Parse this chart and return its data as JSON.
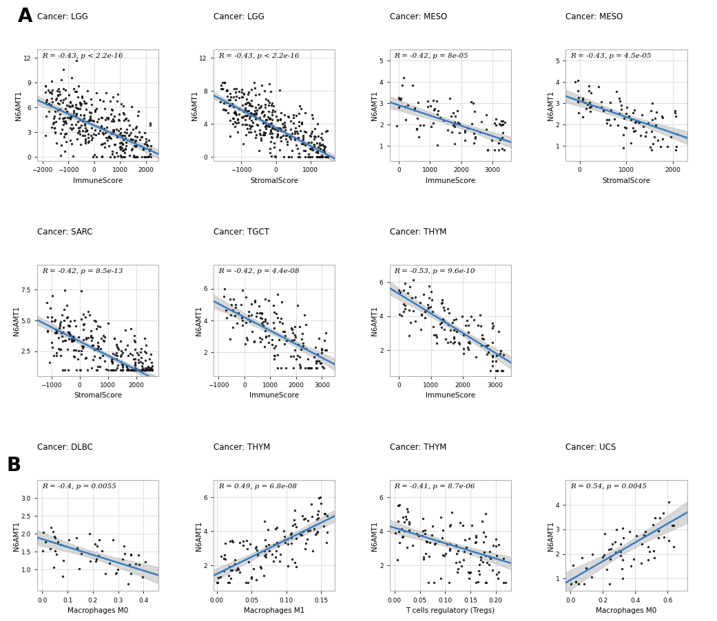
{
  "panels": [
    {
      "row": 0,
      "col": 0,
      "title": "Cancer: LGG",
      "xlabel": "ImmuneScore",
      "ylabel": "N6AMT1",
      "r_text": "R = -0.43, p < 2.2e-16",
      "xlim": [
        -2200,
        2500
      ],
      "ylim": [
        -0.5,
        13
      ],
      "xticks": [
        -2000,
        -1000,
        0,
        1000,
        2000
      ],
      "yticks": [
        0,
        3,
        6,
        9,
        12
      ],
      "slope": -0.0014,
      "intercept": 3.8,
      "n_points": 350,
      "xr": [
        -1900,
        2200
      ],
      "yr": [
        0,
        12
      ],
      "noise_y": 2.2,
      "section": "A",
      "has_right_density": true
    },
    {
      "row": 0,
      "col": 1,
      "title": "Cancer: LGG",
      "xlabel": "StromalScore",
      "ylabel": "N6AMT1",
      "r_text": "R = -0.43, p < 2.2e-16",
      "xlim": [
        -1800,
        1700
      ],
      "ylim": [
        -0.5,
        13
      ],
      "xticks": [
        -1000,
        0,
        1000
      ],
      "yticks": [
        0,
        4,
        8,
        12
      ],
      "slope": -0.0022,
      "intercept": 3.5,
      "n_points": 350,
      "xr": [
        -1600,
        1500
      ],
      "yr": [
        0,
        9
      ],
      "noise_y": 1.8,
      "section": "A",
      "has_right_density": true
    },
    {
      "row": 0,
      "col": 2,
      "title": "Cancer: MESO",
      "xlabel": "ImmuneScore",
      "ylabel": "N6AMT1",
      "r_text": "R = -0.42, p = 8e-05",
      "xlim": [
        -300,
        3600
      ],
      "ylim": [
        0.3,
        5.5
      ],
      "xticks": [
        0,
        1000,
        2000,
        3000
      ],
      "yticks": [
        1,
        2,
        3,
        4,
        5
      ],
      "slope": -0.00048,
      "intercept": 2.9,
      "n_points": 87,
      "xr": [
        -100,
        3400
      ],
      "yr": [
        0.8,
        5.0
      ],
      "noise_y": 0.6,
      "section": "A",
      "has_right_density": true
    },
    {
      "row": 0,
      "col": 3,
      "title": "Cancer: MESO",
      "xlabel": "StromalScore",
      "ylabel": "N6AMT1",
      "r_text": "R = -0.43, p = 4.5e-05",
      "xlim": [
        -300,
        2300
      ],
      "ylim": [
        0.3,
        5.5
      ],
      "xticks": [
        0,
        1000,
        2000
      ],
      "yticks": [
        1,
        2,
        3,
        4,
        5
      ],
      "slope": -0.00075,
      "intercept": 3.1,
      "n_points": 87,
      "xr": [
        -100,
        2100
      ],
      "yr": [
        0.8,
        5.0
      ],
      "noise_y": 0.6,
      "section": "A",
      "has_right_density": true
    },
    {
      "row": 1,
      "col": 0,
      "title": "Cancer: SARC",
      "xlabel": "StromalScore",
      "ylabel": "N6AMT1",
      "r_text": "R = -0.42, p = 8.5e-13",
      "xlim": [
        -1500,
        2800
      ],
      "ylim": [
        0.5,
        9.5
      ],
      "xticks": [
        -1000,
        0,
        1000,
        2000
      ],
      "yticks": [
        2.5,
        5.0,
        7.5
      ],
      "slope": -0.00115,
      "intercept": 3.3,
      "n_points": 260,
      "xr": [
        -1200,
        2600
      ],
      "yr": [
        1.0,
        9.0
      ],
      "noise_y": 1.3,
      "section": "A",
      "has_right_density": true
    },
    {
      "row": 1,
      "col": 1,
      "title": "Cancer: TGCT",
      "xlabel": "ImmuneScore",
      "ylabel": "N6AMT1",
      "r_text": "R = -0.42, p = 4.4e-08",
      "xlim": [
        -1200,
        3500
      ],
      "ylim": [
        0.5,
        7.5
      ],
      "xticks": [
        -1000,
        0,
        1000,
        2000,
        3000
      ],
      "yticks": [
        2,
        4,
        6
      ],
      "slope": -0.00085,
      "intercept": 4.2,
      "n_points": 150,
      "xr": [
        -800,
        3200
      ],
      "yr": [
        1.0,
        7.0
      ],
      "noise_y": 1.0,
      "section": "A",
      "has_right_density": true
    },
    {
      "row": 1,
      "col": 2,
      "title": "Cancer: THYM",
      "xlabel": "ImmuneScore",
      "ylabel": "N6AMT1",
      "r_text": "R = -0.53, p = 9.6e-10",
      "xlim": [
        -300,
        3500
      ],
      "ylim": [
        0.5,
        7.0
      ],
      "xticks": [
        0,
        1000,
        2000,
        3000
      ],
      "yticks": [
        2,
        4,
        6
      ],
      "slope": -0.00115,
      "intercept": 5.3,
      "n_points": 120,
      "xr": [
        -100,
        3300
      ],
      "yr": [
        0.8,
        6.5
      ],
      "noise_y": 0.9,
      "section": "A",
      "has_right_density": true
    },
    {
      "row": 2,
      "col": 0,
      "title": "Cancer: DLBC",
      "xlabel": "Macrophages M0",
      "ylabel": "N6AMT1",
      "r_text": "R = -0.4, p = 0.0055",
      "xlim": [
        -0.02,
        0.46
      ],
      "ylim": [
        0.4,
        3.5
      ],
      "xticks": [
        0.0,
        0.1,
        0.2,
        0.3,
        0.4
      ],
      "yticks": [
        1.0,
        1.5,
        2.0,
        2.5,
        3.0
      ],
      "slope": -2.2,
      "intercept": 1.85,
      "n_points": 48,
      "xr": [
        0.0,
        0.43
      ],
      "yr": [
        0.6,
        3.2
      ],
      "noise_y": 0.35,
      "section": "B",
      "has_right_density": true
    },
    {
      "row": 2,
      "col": 1,
      "title": "Cancer: THYM",
      "xlabel": "Macrophages M1",
      "ylabel": "N6AMT1",
      "r_text": "R = 0.49, p = 6.8e-08",
      "xlim": [
        -0.005,
        0.17
      ],
      "ylim": [
        0.5,
        7.0
      ],
      "xticks": [
        0.0,
        0.05,
        0.1,
        0.15
      ],
      "yticks": [
        2,
        4,
        6
      ],
      "slope": 20.0,
      "intercept": 1.5,
      "n_points": 120,
      "xr": [
        0.0,
        0.16
      ],
      "yr": [
        1.0,
        6.5
      ],
      "noise_y": 0.9,
      "section": "B",
      "has_right_density": true
    },
    {
      "row": 2,
      "col": 2,
      "title": "Cancer: THYM",
      "xlabel": "T cells regulatory (Tregs)",
      "ylabel": "N6AMT1",
      "r_text": "R = -0.41, p = 8.7e-06",
      "xlim": [
        -0.01,
        0.23
      ],
      "ylim": [
        0.5,
        7.0
      ],
      "xticks": [
        0.0,
        0.05,
        0.1,
        0.15,
        0.2
      ],
      "yticks": [
        2,
        4,
        6
      ],
      "slope": -9.0,
      "intercept": 4.2,
      "n_points": 120,
      "xr": [
        0.0,
        0.22
      ],
      "yr": [
        1.0,
        6.5
      ],
      "noise_y": 0.95,
      "section": "B",
      "has_right_density": true
    },
    {
      "row": 2,
      "col": 3,
      "title": "Cancer: UCS",
      "xlabel": "Macrophages M0",
      "ylabel": "N6AMT1",
      "r_text": "R = 0.54, p = 0.0045",
      "xlim": [
        -0.03,
        0.72
      ],
      "ylim": [
        0.5,
        5.0
      ],
      "xticks": [
        0.0,
        0.2,
        0.4,
        0.6
      ],
      "yticks": [
        1,
        2,
        3,
        4
      ],
      "slope": 3.8,
      "intercept": 0.95,
      "n_points": 57,
      "xr": [
        0.0,
        0.65
      ],
      "yr": [
        0.8,
        4.8
      ],
      "noise_y": 0.7,
      "section": "B",
      "has_right_density": true
    }
  ],
  "bg_color": "#ffffff",
  "scatter_color": "#111111",
  "line_color": "#3a7bbf",
  "ci_color": "#bbbbbb",
  "font_size_title": 8.5,
  "font_size_label": 7.5,
  "font_size_annot": 7.5,
  "font_size_tick": 6.5,
  "orange_color": "#FFA500",
  "blue_color": "#0000FF"
}
